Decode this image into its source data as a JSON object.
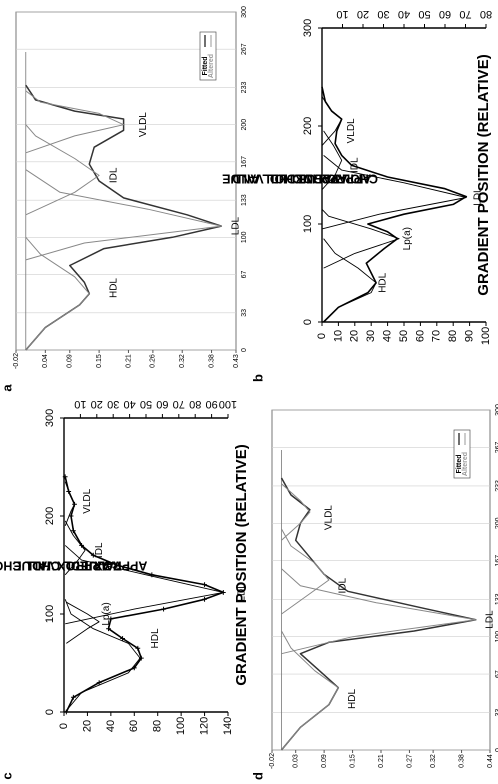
{
  "figure": {
    "panel_letters": [
      "a",
      "b",
      "c",
      "d"
    ]
  },
  "chart_data": [
    {
      "panel": "a",
      "type": "line",
      "xlabel": "GRADIENT POSITION (RELATIVE)",
      "ylabel_left": "APPROX. HDL CHOL VALUE",
      "ylabel_right": "APPROX. LDL CHOL VALUE",
      "x_ticks": [
        "0",
        "100",
        "200",
        "300"
      ],
      "x_range": [
        0,
        300
      ],
      "left_ticks": [
        "0",
        "20",
        "40",
        "60",
        "80",
        "100",
        "120",
        "140"
      ],
      "left_range": [
        0,
        140
      ],
      "right_ticks": [
        "10",
        "20",
        "30",
        "40",
        "50",
        "60",
        "70",
        "80",
        "90",
        "100"
      ],
      "right_range": [
        0,
        100
      ],
      "peak_labels": [
        "HDL",
        "Lp(a)",
        "LDL",
        "IDL",
        "VLDL"
      ],
      "grid": false,
      "series": [
        {
          "style": "measured (crosses)",
          "points": [
            [
              0,
              2
            ],
            [
              15,
              8
            ],
            [
              30,
              30
            ],
            [
              45,
              60
            ],
            [
              55,
              66
            ],
            [
              65,
              63
            ],
            [
              75,
              50
            ],
            [
              85,
              38
            ],
            [
              95,
              40
            ],
            [
              105,
              85
            ],
            [
              115,
              120
            ],
            [
              122,
              136
            ],
            [
              130,
              120
            ],
            [
              140,
              75
            ],
            [
              150,
              45
            ],
            [
              160,
              25
            ],
            [
              170,
              15
            ],
            [
              185,
              8
            ],
            [
              200,
              6
            ],
            [
              212,
              9
            ],
            [
              225,
              4
            ],
            [
              240,
              1
            ]
          ]
        },
        {
          "style": "component HDL",
          "points": [
            [
              0,
              1
            ],
            [
              20,
              15
            ],
            [
              40,
              55
            ],
            [
              55,
              65
            ],
            [
              70,
              55
            ],
            [
              85,
              25
            ],
            [
              100,
              6
            ],
            [
              115,
              1
            ]
          ]
        },
        {
          "style": "component Lp(a)",
          "points": [
            [
              70,
              2
            ],
            [
              85,
              20
            ],
            [
              92,
              30
            ],
            [
              100,
              20
            ],
            [
              112,
              2
            ]
          ]
        },
        {
          "style": "component LDL",
          "points": [
            [
              90,
              1
            ],
            [
              105,
              60
            ],
            [
              122,
              136
            ],
            [
              140,
              70
            ],
            [
              155,
              15
            ],
            [
              170,
              1
            ]
          ]
        },
        {
          "style": "component IDL",
          "points": [
            [
              140,
              1
            ],
            [
              155,
              12
            ],
            [
              165,
              18
            ],
            [
              180,
              8
            ],
            [
              195,
              1
            ]
          ]
        },
        {
          "style": "component VLDL",
          "points": [
            [
              190,
              1
            ],
            [
              205,
              6
            ],
            [
              212,
              9
            ],
            [
              222,
              5
            ],
            [
              235,
              1
            ]
          ]
        }
      ]
    },
    {
      "panel": "b",
      "type": "line",
      "x_ticks": [
        "0",
        "33",
        "67",
        "100",
        "133",
        "167",
        "200",
        "233",
        "267",
        "300"
      ],
      "x_range": [
        0,
        300
      ],
      "y_ticks": [
        "-0.02",
        "0.04",
        "0.09",
        "0.15",
        "0.21",
        "0.26",
        "0.32",
        "0.38",
        "0.43"
      ],
      "y_range": [
        -0.02,
        0.43
      ],
      "peak_labels": [
        "HDL",
        "LDL",
        "IDL",
        "VLDL"
      ],
      "legend": [
        "Fitted",
        "Altered"
      ],
      "legend_position": "top-right",
      "grid": true,
      "series": [
        {
          "name": "Fitted",
          "points": [
            [
              0,
              0.0
            ],
            [
              20,
              0.04
            ],
            [
              40,
              0.11
            ],
            [
              50,
              0.13
            ],
            [
              60,
              0.12
            ],
            [
              75,
              0.09
            ],
            [
              90,
              0.16
            ],
            [
              100,
              0.3
            ],
            [
              110,
              0.4
            ],
            [
              120,
              0.33
            ],
            [
              135,
              0.2
            ],
            [
              150,
              0.15
            ],
            [
              165,
              0.13
            ],
            [
              180,
              0.14
            ],
            [
              195,
              0.2
            ],
            [
              205,
              0.2
            ],
            [
              212,
              0.1
            ],
            [
              222,
              0.02
            ],
            [
              235,
              0.0
            ]
          ]
        },
        {
          "name": "HDL component",
          "points": [
            [
              0,
              0.0
            ],
            [
              20,
              0.04
            ],
            [
              40,
              0.11
            ],
            [
              50,
              0.13
            ],
            [
              65,
              0.1
            ],
            [
              85,
              0.03
            ],
            [
              100,
              0.0
            ]
          ]
        },
        {
          "name": "LDL component",
          "points": [
            [
              80,
              0.0
            ],
            [
              95,
              0.12
            ],
            [
              110,
              0.4
            ],
            [
              125,
              0.25
            ],
            [
              140,
              0.07
            ],
            [
              160,
              0.0
            ]
          ]
        },
        {
          "name": "IDL component",
          "points": [
            [
              120,
              0.0
            ],
            [
              140,
              0.1
            ],
            [
              155,
              0.15
            ],
            [
              170,
              0.1
            ],
            [
              190,
              0.02
            ],
            [
              200,
              0.0
            ]
          ]
        },
        {
          "name": "VLDL component",
          "points": [
            [
              175,
              0.0
            ],
            [
              190,
              0.1
            ],
            [
              200,
              0.2
            ],
            [
              210,
              0.15
            ],
            [
              220,
              0.03
            ],
            [
              230,
              0.0
            ]
          ]
        }
      ]
    },
    {
      "panel": "c",
      "type": "line",
      "x_ticks": [
        "0",
        "33",
        "67",
        "100",
        "133",
        "167",
        "200",
        "233",
        "267",
        "300"
      ],
      "x_range": [
        0,
        300
      ],
      "y_ticks": [
        "-0.02",
        "0.03",
        "0.09",
        "0.15",
        "0.21",
        "0.27",
        "0.32",
        "0.38",
        "0.44"
      ],
      "y_range": [
        -0.02,
        0.44
      ],
      "peak_labels": [
        "HDL",
        "LDL",
        "IDL",
        "VLDL"
      ],
      "legend": [
        "Fitted",
        "Altered"
      ],
      "legend_position": "top-right",
      "grid": true,
      "series": [
        {
          "name": "Fitted",
          "points": [
            [
              0,
              0.0
            ],
            [
              20,
              0.04
            ],
            [
              40,
              0.1
            ],
            [
              55,
              0.12
            ],
            [
              70,
              0.08
            ],
            [
              85,
              0.04
            ],
            [
              95,
              0.1
            ],
            [
              105,
              0.28
            ],
            [
              115,
              0.41
            ],
            [
              125,
              0.3
            ],
            [
              140,
              0.14
            ],
            [
              155,
              0.09
            ],
            [
              170,
              0.06
            ],
            [
              185,
              0.03
            ],
            [
              200,
              0.04
            ],
            [
              212,
              0.06
            ],
            [
              225,
              0.02
            ],
            [
              240,
              0.0
            ]
          ]
        },
        {
          "name": "HDL component",
          "points": [
            [
              0,
              0.0
            ],
            [
              20,
              0.04
            ],
            [
              40,
              0.1
            ],
            [
              55,
              0.12
            ],
            [
              70,
              0.07
            ],
            [
              90,
              0.02
            ],
            [
              105,
              0.0
            ]
          ]
        },
        {
          "name": "LDL component",
          "points": [
            [
              85,
              0.0
            ],
            [
              100,
              0.15
            ],
            [
              115,
              0.41
            ],
            [
              130,
              0.2
            ],
            [
              145,
              0.04
            ],
            [
              160,
              0.0
            ]
          ]
        },
        {
          "name": "IDL component",
          "points": [
            [
              120,
              0.0
            ],
            [
              135,
              0.05
            ],
            [
              150,
              0.1
            ],
            [
              165,
              0.07
            ],
            [
              180,
              0.02
            ],
            [
              195,
              0.0
            ]
          ]
        },
        {
          "name": "VLDL component",
          "points": [
            [
              185,
              0.0
            ],
            [
              200,
              0.04
            ],
            [
              210,
              0.06
            ],
            [
              220,
              0.04
            ],
            [
              235,
              0.0
            ]
          ]
        }
      ]
    },
    {
      "panel": "d",
      "type": "line",
      "xlabel": "GRADIENT POSITION (RELATIVE)",
      "ylabel_left": "APPROX. HDL AND LDL CHOL VALUE",
      "ylabel_right": "APPROX. VLDL CHOL VALUE",
      "x_ticks": [
        "0",
        "100",
        "200",
        "300"
      ],
      "x_range": [
        0,
        300
      ],
      "left_ticks": [
        "0",
        "10",
        "20",
        "30",
        "40",
        "50",
        "60",
        "70",
        "80",
        "90",
        "100"
      ],
      "left_range": [
        0,
        100
      ],
      "right_ticks": [
        "10",
        "20",
        "30",
        "40",
        "50",
        "60",
        "70",
        "80"
      ],
      "right_range": [
        0,
        80
      ],
      "peak_labels": [
        "HDL",
        "Lp(a)",
        "LDL",
        "IDL",
        "VLDL"
      ],
      "grid": false,
      "series": [
        {
          "style": "measured",
          "points": [
            [
              0,
              1
            ],
            [
              15,
              10
            ],
            [
              30,
              28
            ],
            [
              40,
              33
            ],
            [
              50,
              30
            ],
            [
              60,
              27
            ],
            [
              75,
              38
            ],
            [
              85,
              46
            ],
            [
              92,
              40
            ],
            [
              100,
              28
            ],
            [
              110,
              50
            ],
            [
              120,
              80
            ],
            [
              128,
              88
            ],
            [
              136,
              75
            ],
            [
              148,
              40
            ],
            [
              160,
              18
            ],
            [
              170,
              12
            ],
            [
              182,
              8
            ],
            [
              195,
              9
            ],
            [
              207,
              12
            ],
            [
              215,
              6
            ],
            [
              225,
              2
            ],
            [
              240,
              0
            ]
          ]
        },
        {
          "style": "component HDL",
          "points": [
            [
              0,
              1
            ],
            [
              15,
              10
            ],
            [
              30,
              30
            ],
            [
              40,
              33
            ],
            [
              55,
              22
            ],
            [
              70,
              8
            ],
            [
              85,
              1
            ]
          ]
        },
        {
          "style": "component Lp(a)",
          "points": [
            [
              55,
              1
            ],
            [
              70,
              20
            ],
            [
              85,
              47
            ],
            [
              95,
              30
            ],
            [
              108,
              4
            ],
            [
              115,
              0
            ]
          ]
        },
        {
          "style": "component LDL",
          "points": [
            [
              95,
              0
            ],
            [
              110,
              35
            ],
            [
              127,
              88
            ],
            [
              142,
              50
            ],
            [
              155,
              12
            ],
            [
              170,
              1
            ]
          ]
        },
        {
          "style": "component IDL",
          "points": [
            [
              135,
              0
            ],
            [
              150,
              8
            ],
            [
              165,
              12
            ],
            [
              180,
              7
            ],
            [
              195,
              1
            ]
          ]
        },
        {
          "style": "component VLDL",
          "points": [
            [
              180,
              0
            ],
            [
              195,
              8
            ],
            [
              207,
              12
            ],
            [
              217,
              5
            ],
            [
              230,
              0
            ]
          ]
        }
      ]
    }
  ]
}
